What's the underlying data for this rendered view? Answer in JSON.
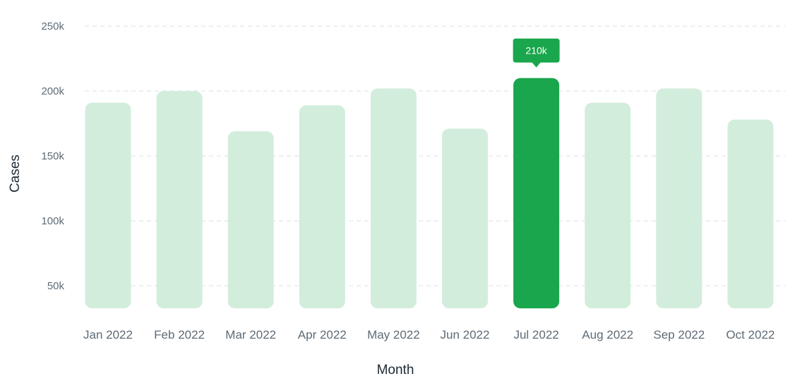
{
  "chart_data": {
    "type": "bar",
    "xlabel": "Month",
    "ylabel": "Cases",
    "ylim": [
      20000,
      250000
    ],
    "yticks": [
      50000,
      100000,
      150000,
      200000,
      250000
    ],
    "ytick_labels": [
      "50k",
      "100k",
      "150k",
      "200k",
      "250k"
    ],
    "grid": true,
    "categories": [
      "Jan 2022",
      "Feb 2022",
      "Mar 2022",
      "Apr 2022",
      "May 2022",
      "Jun 2022",
      "Jul 2022",
      "Aug 2022",
      "Sep 2022",
      "Oct 2022"
    ],
    "values": [
      191000,
      200000,
      169000,
      189000,
      202000,
      171000,
      210000,
      191000,
      202000,
      178000
    ],
    "highlight_index": 6,
    "tooltip_label": "210k",
    "colors": {
      "bar": "#d3eddc",
      "highlight": "#1aa64c",
      "grid": "#dcdfe3",
      "tick_text": "#5f6b75",
      "axis_title": "#1f2a33"
    }
  }
}
